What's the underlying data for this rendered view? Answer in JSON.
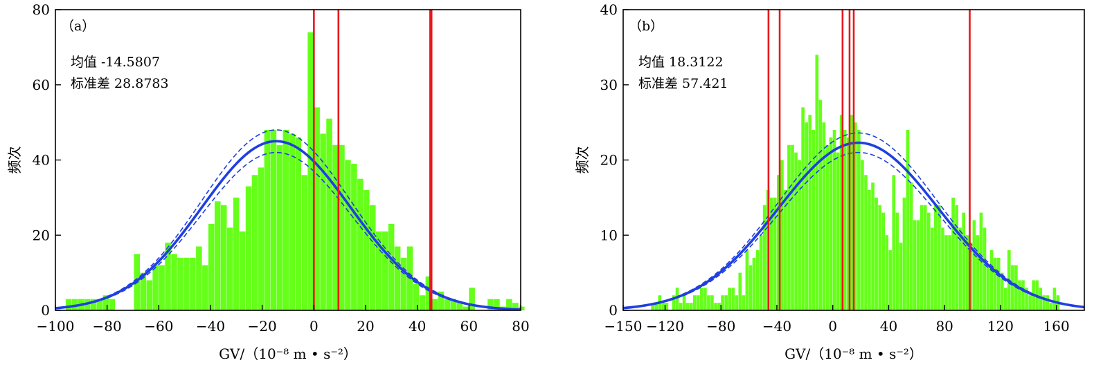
{
  "chart_data": [
    {
      "type": "bar",
      "panel_label": "（a）",
      "annotations": [
        "均值 -14.5807",
        "标准差 28.8783"
      ],
      "xlabel": "GV/（10⁻⁸ m • s⁻²）",
      "ylabel": "频次",
      "xlim": [
        -100,
        80
      ],
      "ylim": [
        0,
        80
      ],
      "xticks": [
        -100,
        -80,
        -60,
        -40,
        -20,
        0,
        20,
        40,
        60,
        80
      ],
      "xtick_labels": [
        "−100",
        "−80",
        "−60",
        "−40",
        "−20",
        "0",
        "20",
        "40",
        "60",
        "80"
      ],
      "yticks": [
        0,
        20,
        40,
        60,
        80
      ],
      "ytick_labels": [
        "0",
        "20",
        "40",
        "60",
        "80"
      ],
      "bin_start": -96,
      "bin_width": 2.4,
      "bin_counts": [
        3,
        3,
        3,
        3,
        3,
        3,
        4,
        3,
        0,
        0,
        0,
        15,
        10,
        8,
        12,
        12,
        18,
        15,
        14,
        14,
        14,
        17,
        12,
        23,
        29,
        28,
        22,
        30,
        21,
        33,
        36,
        38,
        48,
        48,
        44,
        48,
        47,
        46,
        36,
        74,
        54,
        47,
        51,
        44,
        44,
        40,
        39,
        35,
        32,
        28,
        21,
        21,
        23,
        17,
        14,
        17,
        7,
        4,
        9,
        3,
        5,
        3,
        3,
        2,
        1,
        6,
        0,
        0,
        3,
        3,
        1,
        3,
        2,
        1
      ],
      "fit": {
        "mean": -14.5807,
        "std": 28.8783,
        "peak": 45,
        "band": 3
      },
      "vlines": [
        0,
        9.5,
        45,
        45.5
      ],
      "colors": {
        "bars": "#66ff1a",
        "fit": "#1f3fe0",
        "vlines": "#e8181c"
      }
    },
    {
      "type": "bar",
      "panel_label": "（b）",
      "annotations": [
        "均值 18.3122",
        "标准差 57.421"
      ],
      "xlabel": "GV/（10⁻⁸ m • s⁻²）",
      "ylabel": "频次",
      "xlim": [
        -150,
        180
      ],
      "ylim": [
        0,
        40
      ],
      "xticks": [
        -150,
        -120,
        -80,
        -40,
        0,
        40,
        80,
        120,
        160
      ],
      "xtick_labels": [
        "−150",
        "−120",
        "−80",
        "−40",
        "0",
        "40",
        "80",
        "120",
        "160"
      ],
      "yticks": [
        0,
        10,
        20,
        30,
        40
      ],
      "ytick_labels": [
        "0",
        "10",
        "20",
        "30",
        "40"
      ],
      "bin_start": -130,
      "bin_width": 2.5,
      "bin_counts": [
        1,
        1,
        2,
        1,
        1,
        0,
        2,
        3,
        1,
        2,
        1,
        1,
        2,
        2,
        3,
        3,
        2,
        2,
        1,
        1,
        2,
        2,
        3,
        3,
        2,
        5,
        2,
        8,
        6,
        7,
        8,
        10,
        14,
        16,
        15,
        15,
        18,
        20,
        16,
        22,
        22,
        21,
        20,
        27,
        25,
        26,
        24,
        34,
        28,
        25,
        22,
        23,
        24,
        21,
        26,
        24,
        23,
        26,
        25,
        24,
        20,
        18,
        16,
        17,
        15,
        14,
        13,
        10,
        8,
        18,
        13,
        9,
        15,
        24,
        17,
        12,
        12,
        14,
        14,
        13,
        11,
        14,
        14,
        11,
        10,
        10,
        15,
        14,
        11,
        13,
        10,
        9,
        12,
        10,
        13,
        11,
        6,
        8,
        7,
        7,
        5,
        3,
        8,
        6,
        6,
        4,
        4,
        3,
        2,
        4,
        4,
        3,
        2,
        2,
        1,
        3,
        2
      ],
      "fit": {
        "mean": 18.3122,
        "std": 57.421,
        "peak": 22.3,
        "band": 1.3
      },
      "vlines": [
        -46,
        -38,
        7,
        12,
        15,
        98
      ],
      "colors": {
        "bars": "#66ff1a",
        "fit": "#1f3fe0",
        "vlines": "#e8181c"
      }
    }
  ]
}
